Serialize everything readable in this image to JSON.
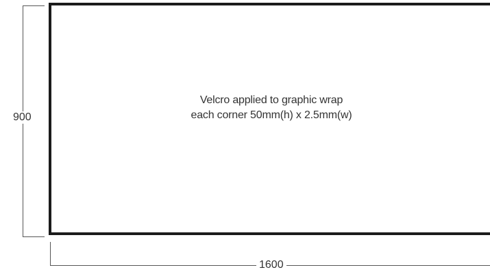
{
  "panel": {
    "note_line1": "Velcro applied to graphic wrap",
    "note_line2": "each corner 50mm(h) x 2.5mm(w)"
  },
  "dimensions": {
    "height_label": "900",
    "width_label": "1600"
  },
  "colors": {
    "panel_border": "#1b1b1b",
    "dimension_line": "#555555",
    "text": "#333333"
  }
}
